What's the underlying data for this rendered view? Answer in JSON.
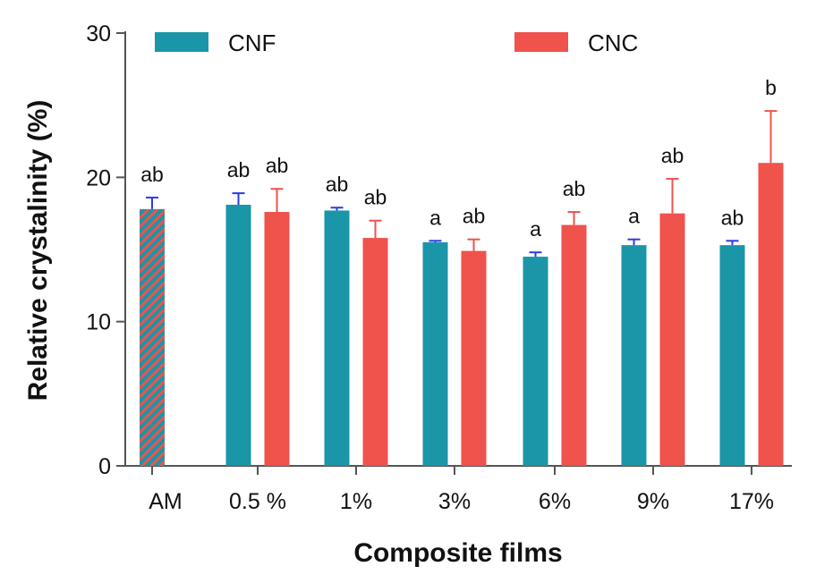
{
  "chart_data": {
    "type": "bar",
    "xlabel": "Composite films",
    "ylabel": "Relative crystalinity (%)",
    "ylim": [
      0,
      30
    ],
    "yticks": [
      0,
      10,
      20,
      30
    ],
    "categories": [
      "AM",
      "0.5 %",
      "1%",
      "3%",
      "6%",
      "9%",
      "17%"
    ],
    "legend_placement": "top",
    "control": {
      "category": "AM",
      "value": 17.8,
      "error": 0.8,
      "annotation": "ab",
      "colors": [
        "#1b95a8",
        "#f0524c"
      ]
    },
    "series": [
      {
        "name": "CNF",
        "color": "#1b95a8",
        "error_color": "#2c3ce6",
        "values": [
          null,
          18.1,
          17.7,
          15.5,
          14.5,
          15.3,
          15.3
        ],
        "errors": [
          null,
          0.8,
          0.2,
          0.1,
          0.3,
          0.4,
          0.3
        ],
        "annotations": [
          null,
          "ab",
          "ab",
          "a",
          "a",
          "a",
          "ab"
        ]
      },
      {
        "name": "CNC",
        "color": "#f0524c",
        "error_color": "#f0524c",
        "values": [
          null,
          17.6,
          15.8,
          14.9,
          16.7,
          17.5,
          21.0
        ],
        "errors": [
          null,
          1.6,
          1.2,
          0.8,
          0.9,
          2.4,
          3.6
        ],
        "annotations": [
          null,
          "ab",
          "ab",
          "ab",
          "ab",
          "ab",
          "b"
        ]
      }
    ]
  }
}
